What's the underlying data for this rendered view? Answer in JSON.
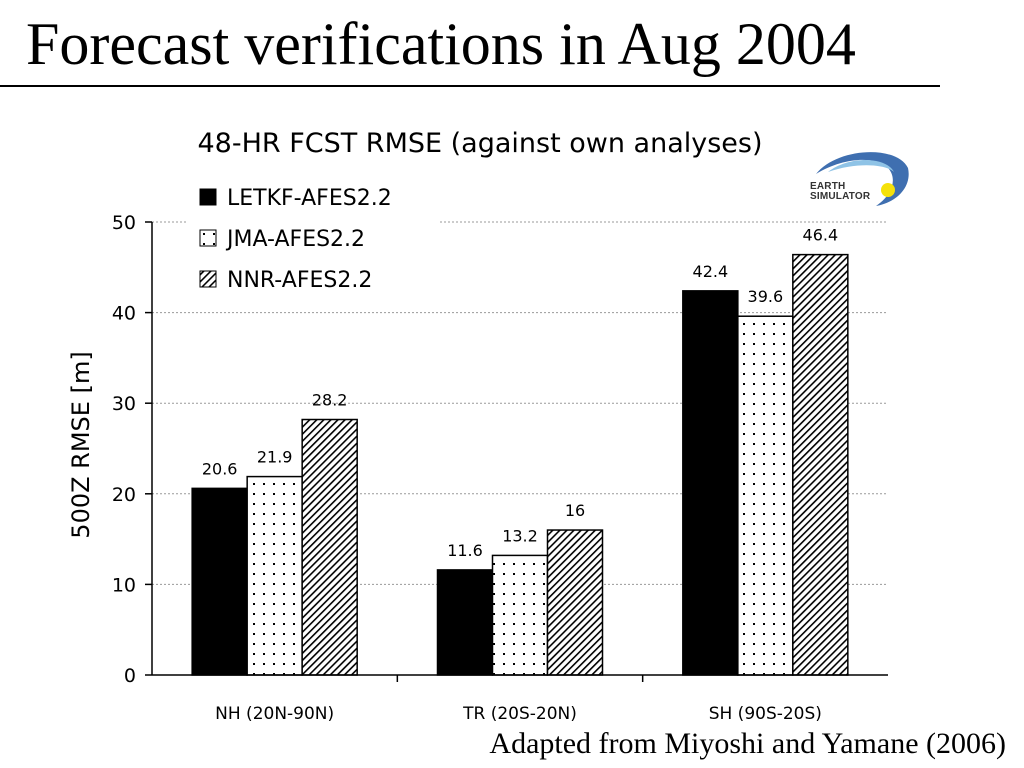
{
  "slide": {
    "title": "Forecast verifications in Aug 2004",
    "footer": "Adapted from Miyoshi and Yamane (2006)"
  },
  "logo": {
    "line1": "EARTH",
    "line2": "SIMULATOR",
    "colors": [
      "#3f6fb0",
      "#8fc3e6",
      "#f5e10a"
    ]
  },
  "chart_data": {
    "type": "bar",
    "title": "48-HR FCST RMSE (against own analyses)",
    "xlabel": "",
    "ylabel": "500Z RMSE [m]",
    "ylim": [
      0,
      50
    ],
    "yticks": [
      0,
      10,
      20,
      30,
      40,
      50
    ],
    "grid": "horizontal dotted",
    "legend_position": "top-left",
    "categories": [
      "NH (20N-90N)",
      "TR (20S-20N)",
      "SH (90S-20S)"
    ],
    "series": [
      {
        "name": "LETKF-AFES2.2",
        "pattern": "solid-black",
        "values": [
          20.6,
          11.6,
          42.4
        ],
        "labels": [
          "20.6",
          "11.6",
          "42.4"
        ]
      },
      {
        "name": "JMA-AFES2.2",
        "pattern": "dots",
        "values": [
          21.9,
          13.2,
          39.6
        ],
        "labels": [
          "21.9",
          "13.2",
          "39.6"
        ]
      },
      {
        "name": "NNR-AFES2.2",
        "pattern": "diagonal-hatch",
        "values": [
          28.2,
          16,
          46.4
        ],
        "labels": [
          "28.2",
          "16",
          "46.4"
        ]
      }
    ]
  }
}
